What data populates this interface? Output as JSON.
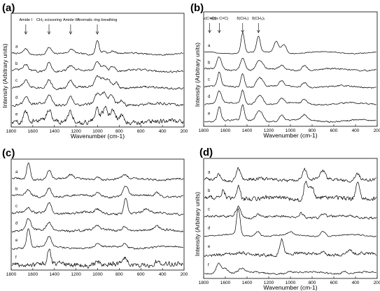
{
  "chart_data": [
    {
      "type": "line",
      "panel_label": "(a)",
      "xlabel": "Wavenumber (cm-1)",
      "ylabel": "Intensity (Arbitrary units)",
      "xlim": [
        1800,
        200
      ],
      "xticks": [
        1800,
        1600,
        1400,
        1200,
        1000,
        800,
        600,
        400,
        200
      ],
      "grid": false,
      "series": [
        {
          "name": "a",
          "peaks": [
            [
              1665,
              0.45
            ],
            [
              1450,
              0.55
            ],
            [
              1240,
              0.3
            ],
            [
              1003,
              1.2
            ],
            [
              940,
              0.3
            ],
            [
              860,
              0.25
            ]
          ],
          "noise": 0.05
        },
        {
          "name": "b",
          "peaks": [
            [
              1665,
              0.45
            ],
            [
              1450,
              0.75
            ],
            [
              1250,
              0.35
            ],
            [
              1003,
              0.8
            ],
            [
              940,
              0.5
            ],
            [
              860,
              0.45
            ]
          ],
          "noise": 0.07
        },
        {
          "name": "c",
          "peaks": [
            [
              1665,
              0.5
            ],
            [
              1450,
              0.7
            ],
            [
              1250,
              0.6
            ],
            [
              1003,
              0.9
            ],
            [
              950,
              0.7
            ],
            [
              900,
              0.7
            ],
            [
              830,
              0.5
            ]
          ],
          "noise": 0.08
        },
        {
          "name": "d",
          "peaks": [
            [
              1665,
              0.6
            ],
            [
              1450,
              0.75
            ],
            [
              1250,
              0.7
            ],
            [
              1003,
              0.8
            ],
            [
              940,
              0.9
            ],
            [
              870,
              0.8
            ],
            [
              780,
              0.4
            ]
          ],
          "noise": 0.09
        },
        {
          "name": "e",
          "peaks": [
            [
              1665,
              0.8
            ],
            [
              1450,
              0.9
            ],
            [
              1250,
              0.8
            ],
            [
              1003,
              0.9
            ],
            [
              930,
              1.0
            ],
            [
              860,
              0.9
            ],
            [
              780,
              0.5
            ]
          ],
          "noise": 0.18
        }
      ],
      "annotations": [
        {
          "text": "Amide I",
          "x": 1665
        },
        {
          "text": "CH₂ scissoring",
          "x": 1450
        },
        {
          "text": "Amide III",
          "x": 1250
        },
        {
          "text": "Aromatic ring breathing",
          "x": 1003
        }
      ]
    },
    {
      "type": "line",
      "panel_label": "(b)",
      "xlabel": "Wavenumber (cm-1)",
      "ylabel": "Intensity (Arbitrary units)",
      "xlim": [
        1800,
        200
      ],
      "xticks": [
        1800,
        1600,
        1400,
        1200,
        1000,
        800,
        600,
        400,
        200
      ],
      "grid": false,
      "series": [
        {
          "name": "a",
          "peaks": [
            [
              1440,
              1.6
            ],
            [
              1295,
              1.3
            ],
            [
              1130,
              0.9
            ],
            [
              1060,
              0.7
            ]
          ],
          "noise": 0.03
        },
        {
          "name": "b",
          "peaks": [
            [
              1656,
              1.0
            ],
            [
              1440,
              1.0
            ],
            [
              1300,
              0.5
            ],
            [
              1265,
              0.45
            ],
            [
              1080,
              0.3
            ],
            [
              870,
              0.4
            ]
          ],
          "noise": 0.05
        },
        {
          "name": "c",
          "peaks": [
            [
              1656,
              1.1
            ],
            [
              1440,
              1.1
            ],
            [
              1300,
              0.55
            ],
            [
              1265,
              0.5
            ],
            [
              1080,
              0.4
            ],
            [
              870,
              0.4
            ]
          ],
          "noise": 0.05
        },
        {
          "name": "d",
          "peaks": [
            [
              1656,
              1.0
            ],
            [
              1440,
              1.1
            ],
            [
              1300,
              0.55
            ],
            [
              1265,
              0.5
            ],
            [
              1080,
              0.4
            ],
            [
              870,
              0.35
            ]
          ],
          "noise": 0.05
        },
        {
          "name": "e",
          "peaks": [
            [
              1656,
              1.2
            ],
            [
              1440,
              1.2
            ],
            [
              1300,
              0.6
            ],
            [
              1265,
              0.55
            ],
            [
              1080,
              0.45
            ],
            [
              870,
              0.45
            ]
          ],
          "noise": 0.05
        }
      ],
      "annotations": [
        {
          "text": "ν(C=O)",
          "x": 1745
        },
        {
          "text": "ν(cis C=C)",
          "x": 1656
        },
        {
          "text": "δ(CH₂)",
          "x": 1440
        },
        {
          "text": "δ(CH₂)ₜ",
          "x": 1295
        }
      ]
    },
    {
      "type": "line",
      "panel_label": "(c)",
      "xlabel": "",
      "ylabel": "",
      "xlim": [
        1800,
        200
      ],
      "xticks": [
        1800,
        1600,
        1400,
        1200,
        1000,
        800,
        600,
        400,
        200
      ],
      "grid": false,
      "series": [
        {
          "name": "a",
          "peaks": [
            [
              1640,
              1.4
            ],
            [
              1450,
              0.7
            ],
            [
              1250,
              0.3
            ],
            [
              1000,
              0.2
            ],
            [
              750,
              0.3
            ]
          ],
          "noise": 0.07
        },
        {
          "name": "b",
          "peaks": [
            [
              1640,
              0.5
            ],
            [
              1450,
              0.7
            ],
            [
              1000,
              0.3
            ],
            [
              740,
              0.8
            ],
            [
              450,
              0.3
            ]
          ],
          "noise": 0.07
        },
        {
          "name": "c",
          "peaks": [
            [
              1640,
              0.4
            ],
            [
              1450,
              0.9
            ],
            [
              740,
              1.3
            ],
            [
              1000,
              0.3
            ],
            [
              550,
              0.3
            ]
          ],
          "noise": 0.08
        },
        {
          "name": "d",
          "peaks": [
            [
              1640,
              0.9
            ],
            [
              1450,
              0.6
            ],
            [
              1000,
              0.35
            ],
            [
              750,
              0.4
            ],
            [
              450,
              0.3
            ]
          ],
          "noise": 0.08
        },
        {
          "name": "e",
          "peaks": [
            [
              1640,
              1.6
            ],
            [
              1450,
              0.8
            ],
            [
              1000,
              0.3
            ],
            [
              750,
              0.3
            ]
          ],
          "noise": 0.06
        },
        {
          "name": "f",
          "peaks": [
            [
              1450,
              1.1
            ],
            [
              1000,
              0.3
            ],
            [
              750,
              0.4
            ],
            [
              450,
              0.3
            ]
          ],
          "noise": 0.18
        }
      ]
    },
    {
      "type": "line",
      "panel_label": "(d)",
      "xlabel": "Wavenumber (cm-1)",
      "ylabel": "Intensity (Arbitrary units)",
      "xlim": [
        1800,
        200
      ],
      "xticks": [
        1800,
        1600,
        1400,
        1200,
        1000,
        800,
        600,
        400,
        200
      ],
      "grid": false,
      "series": [
        {
          "name": "a",
          "peaks": [
            [
              1660,
              0.4
            ],
            [
              1480,
              0.9
            ],
            [
              870,
              0.8
            ],
            [
              700,
              0.6
            ],
            [
              380,
              0.5
            ]
          ],
          "noise": 0.1
        },
        {
          "name": "b",
          "peaks": [
            [
              1620,
              0.5
            ],
            [
              1480,
              1.1
            ],
            [
              860,
              1.3
            ],
            [
              810,
              1.0
            ],
            [
              380,
              1.4
            ]
          ],
          "noise": 0.15
        },
        {
          "name": "c",
          "peaks": [
            [
              1480,
              0.8
            ],
            [
              1300,
              0.3
            ],
            [
              900,
              0.3
            ],
            [
              700,
              0.3
            ]
          ],
          "noise": 0.08
        },
        {
          "name": "d",
          "peaks": [
            [
              1480,
              2.0
            ],
            [
              1300,
              0.4
            ],
            [
              1000,
              0.2
            ],
            [
              700,
              0.4
            ]
          ],
          "noise": 0.04
        },
        {
          "name": "e",
          "peaks": [
            [
              1080,
              1.2
            ],
            [
              700,
              0.3
            ],
            [
              450,
              0.3
            ]
          ],
          "noise": 0.1
        },
        {
          "name": "f",
          "peaks": [
            [
              1660,
              0.8
            ],
            [
              1600,
              0.4
            ],
            [
              1450,
              0.3
            ],
            [
              1000,
              0.15
            ],
            [
              500,
              0.2
            ]
          ],
          "noise": 0.05
        }
      ]
    }
  ]
}
